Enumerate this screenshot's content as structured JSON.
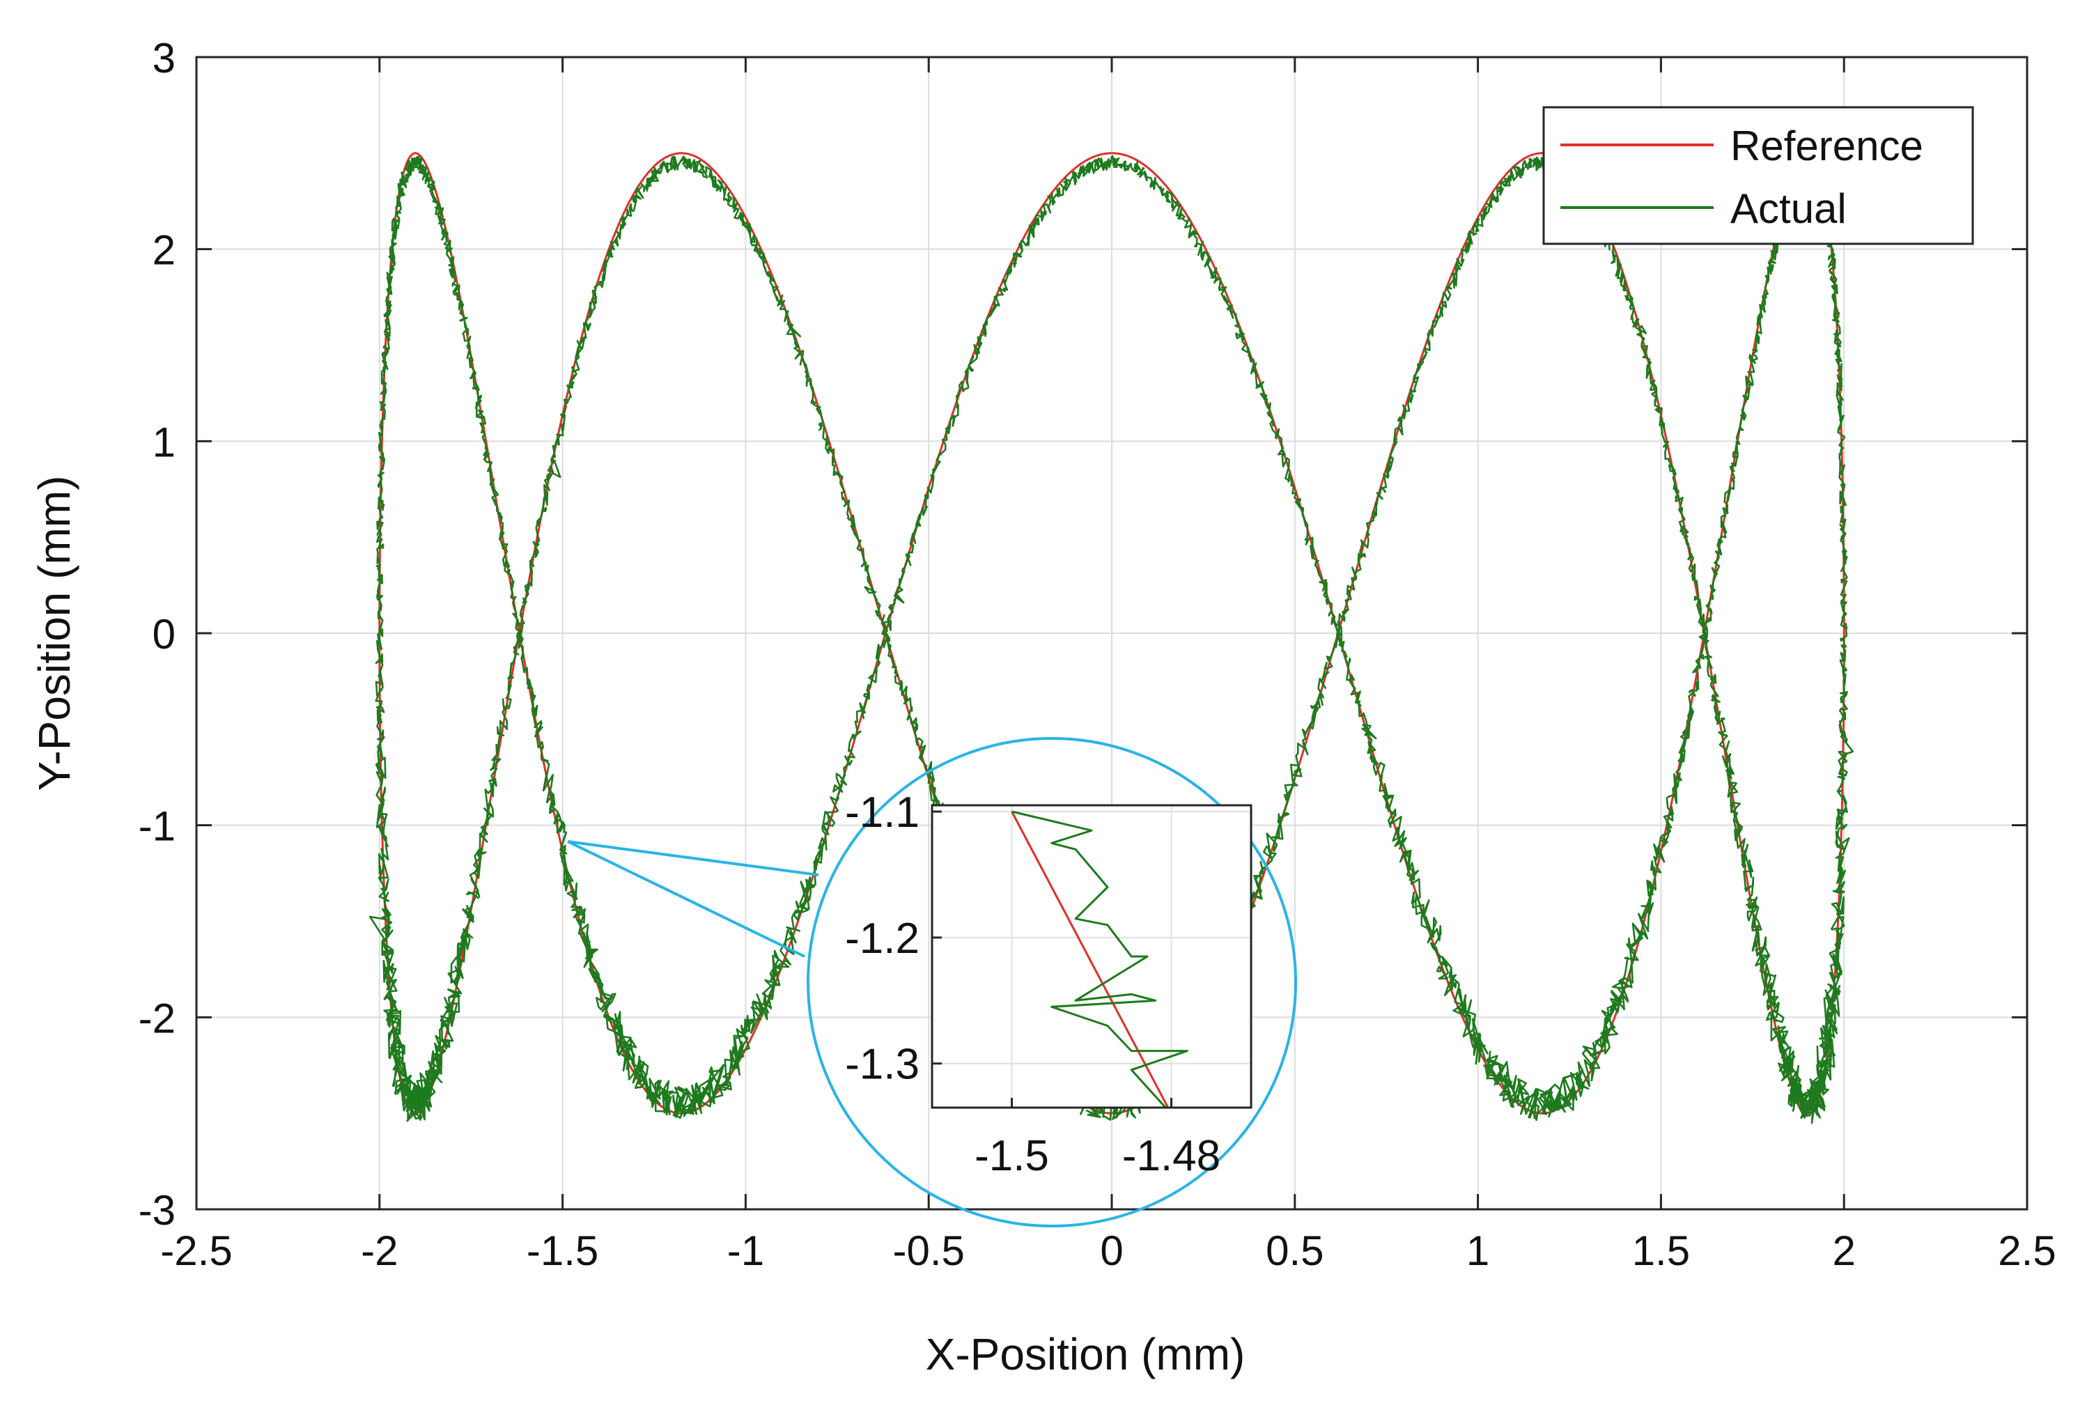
{
  "chart_data": {
    "type": "line",
    "title": "",
    "xlabel": "X-Position (mm)",
    "ylabel": "Y-Position (mm)",
    "xlim": [
      -2.5,
      2.5
    ],
    "ylim": [
      -3,
      3
    ],
    "grid": true,
    "legend_position": "top-right",
    "x_ticks": [
      -2.5,
      -2,
      -1.5,
      -1,
      -0.5,
      0,
      0.5,
      1,
      1.5,
      2,
      2.5
    ],
    "y_ticks": [
      -3,
      -2,
      -1,
      0,
      1,
      2,
      3
    ],
    "x_tick_labels": [
      "-2.5",
      "-2",
      "-1.5",
      "-1",
      "-0.5",
      "0",
      "0.5",
      "1",
      "1.5",
      "2",
      "2.5"
    ],
    "y_tick_labels": [
      "-3",
      "-2",
      "-1",
      "0",
      "1",
      "2",
      "3"
    ],
    "series": [
      {
        "name": "Reference",
        "color": "#e0302a",
        "curve": "lissajous",
        "x_amplitude": 2,
        "y_amplitude": 2.5,
        "y_frequency": 5,
        "samples": 2000
      },
      {
        "name": "Actual",
        "color": "#1e7a1e",
        "curve": "lissajous-noisy",
        "x_amplitude": 2,
        "y_amplitude": 2.45,
        "y_frequency": 5,
        "noise_mm": 0.03,
        "samples": 6000
      }
    ],
    "inset": {
      "xlim": [
        -1.51,
        -1.47
      ],
      "ylim": [
        -1.335,
        -1.095
      ],
      "x_ticks": [
        -1.5,
        -1.48
      ],
      "y_ticks": [
        -1.1,
        -1.2,
        -1.3
      ],
      "x_tick_labels": [
        "-1.5",
        "-1.48"
      ],
      "y_tick_labels": [
        "-1.1",
        "-1.2",
        "-1.3"
      ],
      "focus_point": [
        -1.5,
        -1.1
      ],
      "outline_color": "#2ab4e6",
      "reference_line": [
        [
          -1.5,
          -1.1
        ],
        [
          -1.48,
          -1.34
        ]
      ],
      "actual_points": [
        [
          -1.5,
          -1.1
        ],
        [
          -1.49,
          -1.115
        ],
        [
          -1.495,
          -1.125
        ],
        [
          -1.492,
          -1.13
        ],
        [
          -1.488,
          -1.16
        ],
        [
          -1.492,
          -1.185
        ],
        [
          -1.488,
          -1.19
        ],
        [
          -1.485,
          -1.215
        ],
        [
          -1.483,
          -1.215
        ],
        [
          -1.492,
          -1.25
        ],
        [
          -1.485,
          -1.245
        ],
        [
          -1.482,
          -1.25
        ],
        [
          -1.495,
          -1.255
        ],
        [
          -1.488,
          -1.27
        ],
        [
          -1.485,
          -1.29
        ],
        [
          -1.478,
          -1.29
        ],
        [
          -1.485,
          -1.305
        ],
        [
          -1.48,
          -1.34
        ]
      ]
    }
  }
}
